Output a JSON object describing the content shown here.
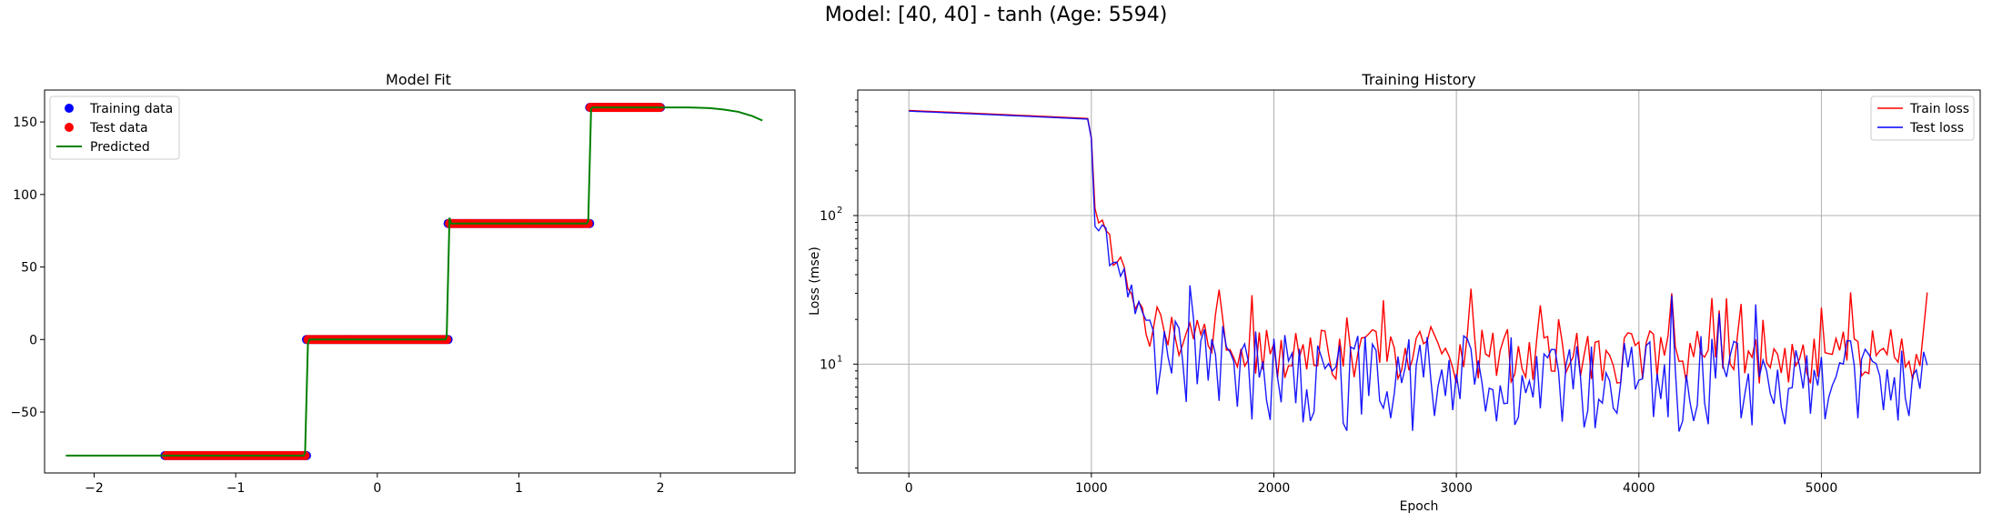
{
  "suptitle": "Model: [40, 40] - tanh (Age: 5594)",
  "chart_data": [
    {
      "type": "scatter",
      "title": "Model Fit",
      "xlabel": "",
      "ylabel": "",
      "xlim": [
        -2.35,
        2.95
      ],
      "ylim": [
        -92,
        172
      ],
      "xticks": [
        -2,
        -1,
        0,
        1,
        2
      ],
      "yticks": [
        -50,
        0,
        50,
        100,
        150
      ],
      "legend_position": "top-left",
      "legend": [
        {
          "label": "Training data",
          "kind": "point",
          "color": "#0000ff"
        },
        {
          "label": "Test data",
          "kind": "point",
          "color": "#ff0000"
        },
        {
          "label": "Predicted",
          "kind": "line",
          "color": "#008000"
        }
      ],
      "segments": [
        {
          "x_start": -1.5,
          "x_end": -0.5,
          "y": -80
        },
        {
          "x_start": -0.5,
          "x_end": 0.5,
          "y": 0
        },
        {
          "x_start": 0.5,
          "x_end": 1.5,
          "y": 80
        },
        {
          "x_start": 1.5,
          "x_end": 2.0,
          "y": 160
        }
      ],
      "predicted": [
        [
          -2.2,
          -80
        ],
        [
          -0.52,
          -80
        ],
        [
          -0.51,
          -78
        ],
        [
          -0.49,
          -3
        ],
        [
          -0.48,
          0
        ],
        [
          0.48,
          0
        ],
        [
          0.49,
          2
        ],
        [
          0.51,
          84
        ],
        [
          0.52,
          80
        ],
        [
          1.48,
          80
        ],
        [
          1.49,
          82
        ],
        [
          1.51,
          159
        ],
        [
          1.52,
          160
        ],
        [
          2.2,
          160
        ],
        [
          2.35,
          159.5
        ],
        [
          2.45,
          158.5
        ],
        [
          2.55,
          157
        ],
        [
          2.65,
          154
        ],
        [
          2.72,
          151
        ]
      ],
      "colors": {
        "training": "#0000ff",
        "test": "#ff0000",
        "predicted": "#008000"
      }
    },
    {
      "type": "line",
      "title": "Training History",
      "xlabel": "Epoch",
      "ylabel": "Loss (mse)",
      "yscale": "log",
      "xlim": [
        -280,
        5870
      ],
      "ylim": [
        1.85,
        700
      ],
      "xticks": [
        0,
        1000,
        2000,
        3000,
        4000,
        5000
      ],
      "yticks": [
        {
          "value": 10,
          "base": "10",
          "exp": "1"
        },
        {
          "value": 100,
          "base": "10",
          "exp": "2"
        }
      ],
      "grid": true,
      "legend_position": "top-right",
      "series": [
        {
          "name": "Train loss",
          "color": "#ff0000"
        },
        {
          "name": "Test loss",
          "color": "#0000ff"
        }
      ],
      "x_step": 20,
      "x_end": 5580
    }
  ]
}
